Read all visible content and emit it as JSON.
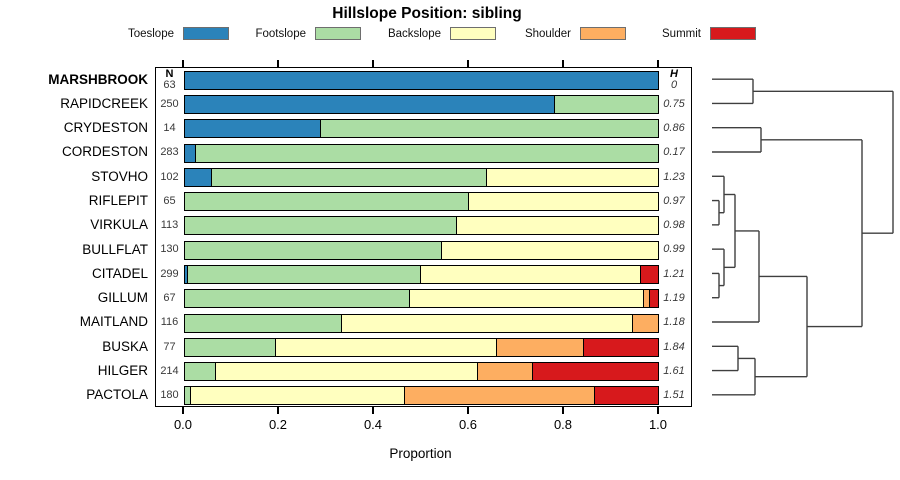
{
  "title": "Hillslope Position: sibling",
  "xlabel": "Proportion",
  "legend": {
    "items": [
      {
        "label": "Toeslope",
        "color": "#2B83BA"
      },
      {
        "label": "Footslope",
        "color": "#ABDDA4"
      },
      {
        "label": "Backslope",
        "color": "#FFFFBF"
      },
      {
        "label": "Shoulder",
        "color": "#FDAE61"
      },
      {
        "label": "Summit",
        "color": "#D7191C"
      }
    ]
  },
  "columns": {
    "n_header": "N",
    "h_header": "H"
  },
  "chart_data": {
    "type": "bar",
    "stacked": true,
    "orientation": "horizontal",
    "title": "Hillslope Position: sibling",
    "xlabel": "Proportion",
    "xlim": [
      0,
      1
    ],
    "x_ticks": [
      "0.0",
      "0.2",
      "0.4",
      "0.6",
      "0.8",
      "1.0"
    ],
    "grid": false,
    "categories": [
      "Toeslope",
      "Footslope",
      "Backslope",
      "Shoulder",
      "Summit"
    ],
    "colors": [
      "#2B83BA",
      "#ABDDA4",
      "#FFFFBF",
      "#FDAE61",
      "#D7191C"
    ],
    "rows": [
      {
        "name": "MARSHBROOK",
        "bold": true,
        "n": 63,
        "h": "0",
        "values": [
          1.0,
          0,
          0,
          0,
          0
        ]
      },
      {
        "name": "RAPIDCREEK",
        "bold": false,
        "n": 250,
        "h": "0.75",
        "values": [
          0.78,
          0.22,
          0,
          0,
          0
        ]
      },
      {
        "name": "CRYDESTON",
        "bold": false,
        "n": 14,
        "h": "0.86",
        "values": [
          0.285,
          0.715,
          0,
          0,
          0
        ]
      },
      {
        "name": "CORDESTON",
        "bold": false,
        "n": 283,
        "h": "0.17",
        "values": [
          0.022,
          0.978,
          0,
          0,
          0
        ]
      },
      {
        "name": "STOVHO",
        "bold": false,
        "n": 102,
        "h": "1.23",
        "values": [
          0.055,
          0.582,
          0.363,
          0,
          0
        ]
      },
      {
        "name": "RIFLEPIT",
        "bold": false,
        "n": 65,
        "h": "0.97",
        "values": [
          0,
          0.598,
          0.402,
          0,
          0
        ]
      },
      {
        "name": "VIRKULA",
        "bold": false,
        "n": 113,
        "h": "0.98",
        "values": [
          0,
          0.573,
          0.427,
          0,
          0
        ]
      },
      {
        "name": "BULLFLAT",
        "bold": false,
        "n": 130,
        "h": "0.99",
        "values": [
          0,
          0.542,
          0.458,
          0,
          0
        ]
      },
      {
        "name": "CITADEL",
        "bold": false,
        "n": 299,
        "h": "1.21",
        "values": [
          0.005,
          0.492,
          0.465,
          0,
          0.038
        ]
      },
      {
        "name": "GILLUM",
        "bold": false,
        "n": 67,
        "h": "1.19",
        "values": [
          0,
          0.474,
          0.494,
          0.013,
          0.019
        ]
      },
      {
        "name": "MAITLAND",
        "bold": false,
        "n": 116,
        "h": "1.18",
        "values": [
          0,
          0.33,
          0.616,
          0.054,
          0
        ]
      },
      {
        "name": "BUSKA",
        "bold": false,
        "n": 77,
        "h": "1.84",
        "values": [
          0,
          0.19,
          0.468,
          0.183,
          0.159
        ]
      },
      {
        "name": "HILGER",
        "bold": false,
        "n": 214,
        "h": "1.61",
        "values": [
          0,
          0.064,
          0.554,
          0.116,
          0.266
        ]
      },
      {
        "name": "PACTOLA",
        "bold": false,
        "n": 180,
        "h": "1.51",
        "values": [
          0,
          0.01,
          0.454,
          0.4,
          0.136
        ]
      }
    ]
  },
  "dendrogram": {
    "leaf_x": 712,
    "root_x": 893,
    "merges": [
      {
        "a": "L1",
        "b": "L2",
        "x": 753
      },
      {
        "a": "L3",
        "b": "L4",
        "x": 761
      },
      {
        "a": "L6",
        "b": "L7",
        "x": 719
      },
      {
        "a": "L5",
        "b": "M3",
        "x": 724
      },
      {
        "a": "L9",
        "b": "L10",
        "x": 719
      },
      {
        "a": "L8",
        "b": "M5",
        "x": 724
      },
      {
        "a": "M4",
        "b": "M6",
        "x": 735
      },
      {
        "a": "M7",
        "b": "L11",
        "x": 759
      },
      {
        "a": "L12",
        "b": "L13",
        "x": 738
      },
      {
        "a": "M9",
        "b": "L14",
        "x": 755
      },
      {
        "a": "M8",
        "b": "M10",
        "x": 807
      },
      {
        "a": "M2",
        "b": "M11",
        "x": 862
      },
      {
        "a": "M1",
        "b": "M12",
        "x": 893
      }
    ]
  }
}
